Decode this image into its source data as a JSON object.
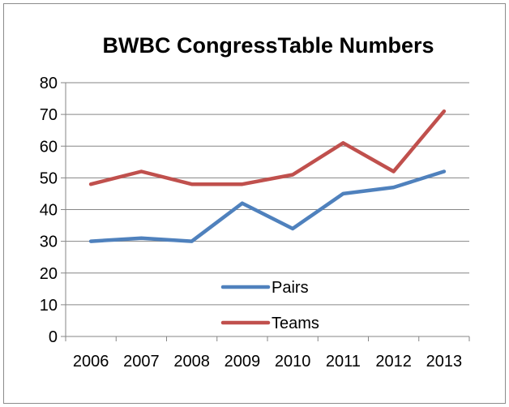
{
  "chart_data": {
    "type": "line",
    "title": "BWBC CongressTable Numbers",
    "xlabel": "",
    "ylabel": "",
    "categories": [
      "2006",
      "2007",
      "2008",
      "2009",
      "2010",
      "2011",
      "2012",
      "2013"
    ],
    "series": [
      {
        "name": "Pairs",
        "values": [
          30,
          31,
          30,
          42,
          34,
          45,
          47,
          52
        ],
        "color": "#4f81bd"
      },
      {
        "name": "Teams",
        "values": [
          48,
          52,
          48,
          48,
          51,
          61,
          52,
          71
        ],
        "color": "#c0504d"
      }
    ],
    "ylim": [
      0,
      80
    ],
    "yticks": [
      0,
      10,
      20,
      30,
      40,
      50,
      60,
      70,
      80
    ],
    "grid": true,
    "legend": "center-bottom"
  }
}
